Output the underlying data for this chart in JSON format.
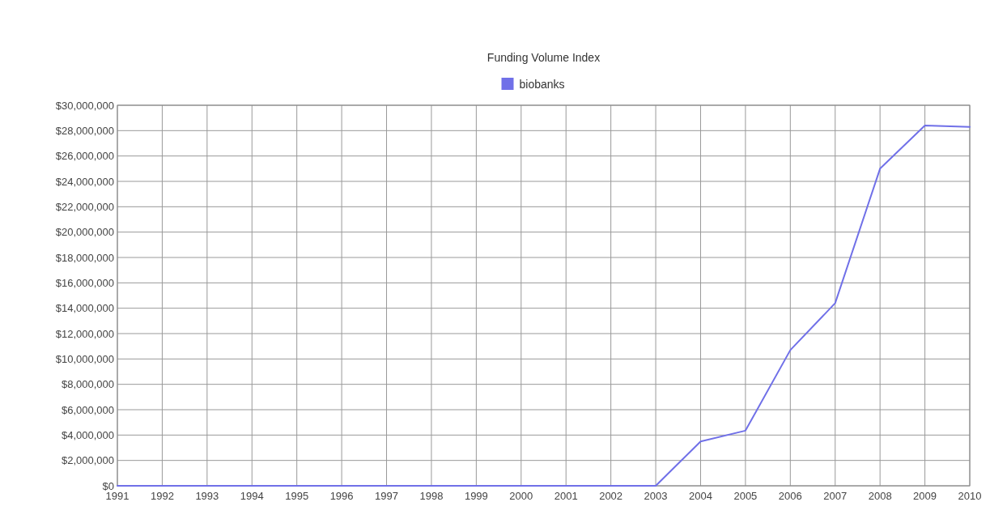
{
  "chart_data": {
    "type": "line",
    "title": "Funding Volume Index",
    "x": [
      1991,
      1992,
      1993,
      1994,
      1995,
      1996,
      1997,
      1998,
      1999,
      2000,
      2001,
      2002,
      2003,
      2004,
      2005,
      2006,
      2007,
      2008,
      2009,
      2010
    ],
    "series": [
      {
        "name": "biobanks",
        "color": "#7070e8",
        "values": [
          0,
          0,
          0,
          0,
          0,
          0,
          0,
          0,
          0,
          0,
          0,
          0,
          0,
          3500000,
          4350000,
          10700000,
          14400000,
          25000000,
          28400000,
          28300000
        ]
      }
    ],
    "xlim": [
      1991,
      2010
    ],
    "xticks": [
      1991,
      1992,
      1993,
      1994,
      1995,
      1996,
      1997,
      1998,
      1999,
      2000,
      2001,
      2002,
      2003,
      2004,
      2005,
      2006,
      2007,
      2008,
      2009,
      2010
    ],
    "ylim": [
      0,
      30000000
    ],
    "yticks": [
      {
        "value": 0,
        "label": "$0"
      },
      {
        "value": 2000000,
        "label": "$2,000,000"
      },
      {
        "value": 4000000,
        "label": "$4,000,000"
      },
      {
        "value": 6000000,
        "label": "$6,000,000"
      },
      {
        "value": 8000000,
        "label": "$8,000,000"
      },
      {
        "value": 10000000,
        "label": "$10,000,000"
      },
      {
        "value": 12000000,
        "label": "$12,000,000"
      },
      {
        "value": 14000000,
        "label": "$14,000,000"
      },
      {
        "value": 16000000,
        "label": "$16,000,000"
      },
      {
        "value": 18000000,
        "label": "$18,000,000"
      },
      {
        "value": 20000000,
        "label": "$20,000,000"
      },
      {
        "value": 22000000,
        "label": "$22,000,000"
      },
      {
        "value": 24000000,
        "label": "$24,000,000"
      },
      {
        "value": 26000000,
        "label": "$26,000,000"
      },
      {
        "value": 28000000,
        "label": "$28,000,000"
      },
      {
        "value": 30000000,
        "label": "$30,000,000"
      }
    ],
    "grid": true,
    "legend": "top",
    "marker": "none",
    "line_style": "solid"
  }
}
